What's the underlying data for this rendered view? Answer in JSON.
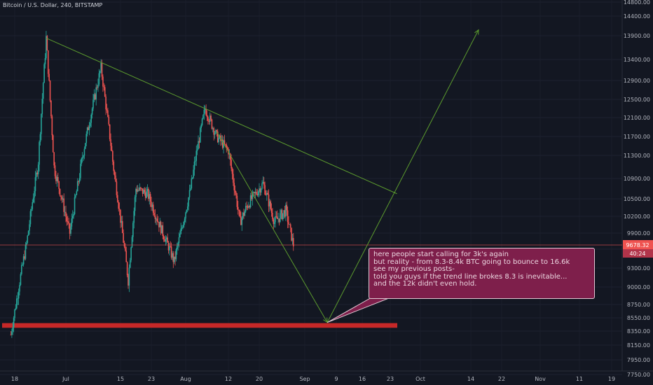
{
  "symbol_title": "Bitcoin / U.S. Dollar, 240, BITSTAMP",
  "price_axis": {
    "ticks": [
      14800,
      14400,
      13900,
      13400,
      12900,
      12500,
      12100,
      11700,
      11300,
      10900,
      10500,
      10200,
      9900,
      9600,
      9300,
      9000,
      8750,
      8550,
      8350,
      8150,
      7950,
      7750
    ],
    "tick_labels": [
      "14800.00",
      "14400.00",
      "13900.00",
      "13400.00",
      "12900.00",
      "12500.00",
      "12100.00",
      "11700.00",
      "11300.00",
      "10900.00",
      "10500.00",
      "10200.00",
      "9900.00",
      "9600.00",
      "9300.00",
      "9000.00",
      "8750.00",
      "8550.00",
      "8350.00",
      "8150.00",
      "7950.00",
      "7750.00"
    ],
    "current_price_label": "9678.32",
    "countdown_label": "40:24",
    "current_price": 9678.32
  },
  "time_axis": {
    "labels": [
      "18",
      "Jul",
      "15",
      "23",
      "Aug",
      "12",
      "20",
      "Sep",
      "9",
      "16",
      "23",
      "Oct",
      "14",
      "22",
      "Nov",
      "11",
      "19"
    ]
  },
  "chart_data": {
    "type": "candlestick",
    "title": "Bitcoin / U.S. Dollar, 240, BITSTAMP",
    "x_labels": [
      "18",
      "Jul",
      "15",
      "23",
      "Aug",
      "12",
      "20",
      "Sep",
      "9",
      "16",
      "23",
      "Oct",
      "14",
      "22",
      "Nov",
      "11",
      "19"
    ],
    "price_anchors": [
      {
        "date": "Jun 17",
        "price": 8300
      },
      {
        "date": "Jun 21",
        "price": 9700
      },
      {
        "date": "Jun 24",
        "price": 11200
      },
      {
        "date": "Jun 26",
        "price": 13850
      },
      {
        "date": "Jun 28",
        "price": 11100
      },
      {
        "date": "Jul 2",
        "price": 9900
      },
      {
        "date": "Jul 6",
        "price": 11600
      },
      {
        "date": "Jul 10",
        "price": 13200
      },
      {
        "date": "Jul 13",
        "price": 11200
      },
      {
        "date": "Jul 17",
        "price": 9100
      },
      {
        "date": "Jul 19",
        "price": 10700
      },
      {
        "date": "Jul 22",
        "price": 10600
      },
      {
        "date": "Jul 26",
        "price": 9900
      },
      {
        "date": "Jul 29",
        "price": 9400
      },
      {
        "date": "Aug 2",
        "price": 10600
      },
      {
        "date": "Aug 6",
        "price": 12300
      },
      {
        "date": "Aug 9",
        "price": 11700
      },
      {
        "date": "Aug 12",
        "price": 11400
      },
      {
        "date": "Aug 15",
        "price": 10100
      },
      {
        "date": "Aug 17",
        "price": 10400
      },
      {
        "date": "Aug 21",
        "price": 10800
      },
      {
        "date": "Aug 24",
        "price": 10100
      },
      {
        "date": "Aug 27",
        "price": 10300
      },
      {
        "date": "Aug 29",
        "price": 9680
      }
    ],
    "last_price": 9678.32,
    "annotations": {
      "resistance_trendline": {
        "from": {
          "date": "Jun 26",
          "price": 13850
        },
        "to": {
          "date": "Sep 24",
          "price": 10600
        }
      },
      "down_arrow": {
        "from": {
          "date": "Aug 9",
          "price": 11800
        },
        "to": {
          "date": "Sep 6",
          "price": 8480
        }
      },
      "up_arrow": {
        "from": {
          "date": "Sep 6",
          "price": 8480
        },
        "to": {
          "date": "Oct 16",
          "price": 14050
        }
      },
      "support_zone": {
        "price_low": 8400,
        "price_high": 8470
      }
    }
  },
  "callout_lines": [
    "here people start calling for 3k's again",
    "but reality - from 8.3-8.4k BTC going to bounce to 16.6k",
    "see my previous posts-",
    " told you guys if the trend line brokes 8.3 is inevitable...",
    "and the 12k didn't even hold."
  ],
  "colors": {
    "background": "#131722",
    "up_candle": "#26a69a",
    "down_candle": "#ef5350",
    "trendline": "#5b9a2e",
    "support_zone": "#c62828",
    "price_line": "#ef5350",
    "callout_bg": "#7e1f4b"
  }
}
